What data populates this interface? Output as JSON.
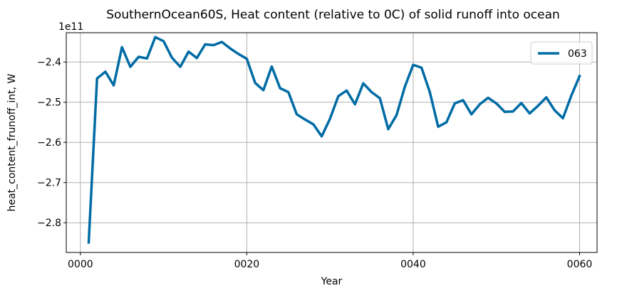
{
  "chart_data": {
    "type": "line",
    "title": "SouthernOcean60S, Heat content (relative to 0C) of solid runoff into ocean",
    "xlabel": "Year",
    "ylabel": "heat_content_frunoff_int, W",
    "y_offset_label": "1e11",
    "xlim": [
      -1.7,
      62.1
    ],
    "ylim": [
      -2.874,
      -2.327
    ],
    "xticks": [
      0,
      20,
      40,
      60
    ],
    "xtick_labels": [
      "0000",
      "0020",
      "0040",
      "0060"
    ],
    "yticks": [
      -2.8,
      -2.7,
      -2.6,
      -2.5,
      -2.4
    ],
    "ytick_labels": [
      "−2.8",
      "−2.7",
      "−2.6",
      "−2.5",
      "−2.4"
    ],
    "grid": true,
    "legend_position": "top-right",
    "series": [
      {
        "name": "063",
        "color": "#006ba4",
        "x": [
          1,
          2,
          3,
          4,
          5,
          6,
          7,
          8,
          9,
          10,
          11,
          12,
          13,
          14,
          15,
          16,
          17,
          18,
          19,
          20,
          21,
          22,
          23,
          24,
          25,
          26,
          27,
          28,
          29,
          30,
          31,
          32,
          33,
          34,
          35,
          36,
          37,
          38,
          39,
          40,
          41,
          42,
          43,
          44,
          45,
          46,
          47,
          48,
          49,
          50,
          51,
          52,
          53,
          54,
          55,
          56,
          57,
          58,
          59,
          60
        ],
        "y": [
          -2.849,
          -2.441,
          -2.424,
          -2.458,
          -2.363,
          -2.412,
          -2.387,
          -2.391,
          -2.338,
          -2.348,
          -2.389,
          -2.412,
          -2.374,
          -2.39,
          -2.356,
          -2.358,
          -2.35,
          -2.366,
          -2.38,
          -2.392,
          -2.452,
          -2.47,
          -2.411,
          -2.465,
          -2.475,
          -2.53,
          -2.543,
          -2.555,
          -2.585,
          -2.541,
          -2.485,
          -2.471,
          -2.505,
          -2.453,
          -2.475,
          -2.49,
          -2.567,
          -2.532,
          -2.461,
          -2.407,
          -2.414,
          -2.475,
          -2.561,
          -2.55,
          -2.503,
          -2.495,
          -2.53,
          -2.505,
          -2.489,
          -2.503,
          -2.524,
          -2.523,
          -2.502,
          -2.528,
          -2.509,
          -2.488,
          -2.52,
          -2.54,
          -2.484,
          -2.435
        ]
      }
    ]
  }
}
